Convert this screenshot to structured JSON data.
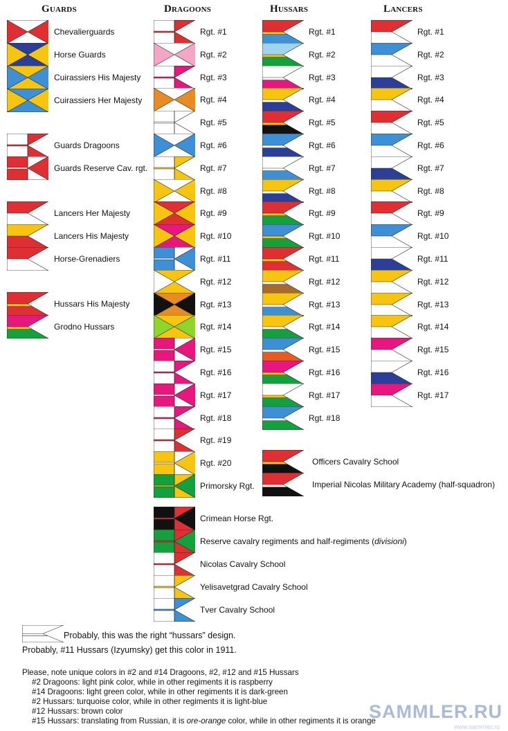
{
  "headers": [
    "Guards",
    "Dragoons",
    "Hussars",
    "Lancers"
  ],
  "colors": {
    "red": "#e02f33",
    "blue": "#3d8fd6",
    "yellow": "#f7c40f",
    "navy": "#2b3f99",
    "pink": "#e8177f",
    "green": "#14a03c",
    "black": "#111111",
    "orange": "#e88b23",
    "lightpink": "#f4a6c6",
    "lightgreen": "#8ed62b",
    "turquoise": "#9fd4ee",
    "brown": "#a86a28",
    "redorange": "#ea5a1f",
    "white": "#ffffff"
  },
  "guards": [
    {
      "label": "Chevalierguards",
      "design": "hourglass",
      "c": [
        "white",
        "red"
      ]
    },
    {
      "label": "Horse Guards",
      "design": "hourglass",
      "c": [
        "navy",
        "yellow"
      ]
    },
    {
      "label": "Cuirassiers His Majesty",
      "design": "hourglass",
      "c": [
        "yellow",
        "blue"
      ]
    },
    {
      "label": "Cuirassiers Her Majesty",
      "design": "hourglass",
      "c": [
        "blue",
        "yellow"
      ]
    },
    {
      "label": "Guards Dragoons",
      "design": "dragoon",
      "c": [
        "white",
        "red"
      ]
    },
    {
      "label": "Guards Reserve Cav. rgt.",
      "design": "dragoon",
      "c": [
        "red",
        "white"
      ]
    },
    {
      "label": "Lancers Her Majesty",
      "design": "lancer",
      "c": [
        "red",
        "white"
      ]
    },
    {
      "label": "Lancers His Majesty",
      "design": "lancer",
      "c": [
        "yellow",
        "red"
      ]
    },
    {
      "label": "Horse-Grenadiers",
      "design": "lancer",
      "c": [
        "red",
        "white"
      ]
    },
    {
      "label": "Hussars His Majesty",
      "design": "hussar",
      "c": [
        "red",
        "yellow",
        "red"
      ]
    },
    {
      "label": "Grodno Hussars",
      "design": "hussar",
      "c": [
        "pink",
        "yellow",
        "green"
      ]
    }
  ],
  "dragoons": [
    {
      "label": "Rgt. #1",
      "design": "dragoon",
      "c": [
        "white",
        "red"
      ]
    },
    {
      "label": "Rgt. #2",
      "design": "hourglass",
      "c": [
        "white",
        "lightpink"
      ]
    },
    {
      "label": "Rgt. #3",
      "design": "dragoon",
      "c": [
        "white",
        "pink"
      ]
    },
    {
      "label": "Rgt. #4",
      "design": "hourglass",
      "c": [
        "white",
        "orange"
      ]
    },
    {
      "label": "Rgt. #5",
      "design": "dragoon",
      "c": [
        "white",
        "white"
      ]
    },
    {
      "label": "Rgt. #6",
      "design": "hourglass",
      "c": [
        "white",
        "blue"
      ]
    },
    {
      "label": "Rgt. #7",
      "design": "dragoon",
      "c": [
        "white",
        "yellow"
      ]
    },
    {
      "label": "Rgt. #8",
      "design": "hourglass",
      "c": [
        "white",
        "yellow"
      ]
    },
    {
      "label": "Rgt. #9",
      "design": "hourglass",
      "c": [
        "red",
        "yellow"
      ]
    },
    {
      "label": "Rgt. #10",
      "design": "hourglass",
      "c": [
        "pink",
        "yellow"
      ]
    },
    {
      "label": "Rgt. #11",
      "design": "dragoon",
      "c": [
        "blue",
        "white"
      ]
    },
    {
      "label": "Rgt. #12",
      "design": "hourglass",
      "c": [
        "yellow",
        "white"
      ]
    },
    {
      "label": "Rgt. #13",
      "design": "hourglass",
      "c": [
        "orange",
        "black"
      ]
    },
    {
      "label": "Rgt. #14",
      "design": "hourglass",
      "c": [
        "yellow",
        "lightgreen"
      ]
    },
    {
      "label": "Rgt. #15",
      "design": "dragoon",
      "c": [
        "pink",
        "white"
      ]
    },
    {
      "label": "Rgt. #16",
      "design": "dragoon",
      "c": [
        "white",
        "pink"
      ]
    },
    {
      "label": "Rgt. #17",
      "design": "dragoon",
      "c": [
        "pink",
        "white"
      ]
    },
    {
      "label": "Rgt. #18",
      "design": "dragoon",
      "c": [
        "white",
        "pink"
      ]
    },
    {
      "label": "Rgt. #19",
      "design": "dragoon",
      "c": [
        "white",
        "red"
      ]
    },
    {
      "label": "Rgt. #20",
      "design": "dragoon",
      "c": [
        "yellow",
        "white"
      ]
    },
    {
      "label": "Primorsky Rgt.",
      "design": "dragoon",
      "c": [
        "green",
        "yellow"
      ]
    },
    {
      "label": "Crimean Horse Rgt.",
      "design": "dragoon",
      "c": [
        "black",
        "red"
      ]
    },
    {
      "label": "Reserve cavalry regiments and half-regiments (divisioni)",
      "design": "dragoon",
      "c": [
        "green",
        "red"
      ],
      "italic": "divisioni"
    },
    {
      "label": "Nicolas Cavalry School",
      "design": "dragoon",
      "c": [
        "white",
        "red"
      ]
    },
    {
      "label": "Yelisavetgrad Cavalry School",
      "design": "dragoon",
      "c": [
        "white",
        "yellow"
      ]
    },
    {
      "label": "Tver Cavalry School",
      "design": "dragoon",
      "c": [
        "white",
        "blue"
      ]
    }
  ],
  "hussars": [
    {
      "label": "Rgt. #1",
      "design": "hussar",
      "c": [
        "red",
        "yellow",
        "blue"
      ]
    },
    {
      "label": "Rgt. #2",
      "design": "hussar",
      "c": [
        "turquoise",
        "yellow",
        "green"
      ]
    },
    {
      "label": "Rgt. #3",
      "design": "hussar",
      "c": [
        "white",
        "white",
        "pink"
      ]
    },
    {
      "label": "Rgt. #4",
      "design": "hussar",
      "c": [
        "yellow",
        "white",
        "navy"
      ]
    },
    {
      "label": "Rgt. #5",
      "design": "hussar",
      "c": [
        "red",
        "yellow",
        "black"
      ]
    },
    {
      "label": "Rgt. #6",
      "design": "hussar",
      "c": [
        "blue",
        "white",
        "navy"
      ]
    },
    {
      "label": "Rgt. #7",
      "design": "hussar",
      "c": [
        "white",
        "white",
        "blue"
      ]
    },
    {
      "label": "Rgt. #8",
      "design": "hussar",
      "c": [
        "yellow",
        "white",
        "navy"
      ]
    },
    {
      "label": "Rgt. #9",
      "design": "hussar",
      "c": [
        "red",
        "yellow",
        "green"
      ]
    },
    {
      "label": "Rgt. #10",
      "design": "hussar",
      "c": [
        "blue",
        "yellow",
        "green"
      ]
    },
    {
      "label": "Rgt. #11",
      "design": "hussar",
      "c": [
        "red",
        "yellow",
        "red"
      ]
    },
    {
      "label": "Rgt. #12",
      "design": "hussar",
      "c": [
        "yellow",
        "white",
        "brown"
      ]
    },
    {
      "label": "Rgt. #13",
      "design": "hussar",
      "c": [
        "yellow",
        "white",
        "blue"
      ]
    },
    {
      "label": "Rgt. #14",
      "design": "hussar",
      "c": [
        "yellow",
        "white",
        "green"
      ]
    },
    {
      "label": "Rgt. #15",
      "design": "hussar",
      "c": [
        "blue",
        "white",
        "redorange"
      ]
    },
    {
      "label": "Rgt. #16",
      "design": "hussar",
      "c": [
        "pink",
        "yellow",
        "green"
      ]
    },
    {
      "label": "Rgt. #17",
      "design": "hussar",
      "c": [
        "white",
        "yellow",
        "green"
      ]
    },
    {
      "label": "Rgt. #18",
      "design": "hussar",
      "c": [
        "blue",
        "white",
        "green"
      ]
    },
    {
      "label": "Officers Cavalry School",
      "design": "hussar",
      "c": [
        "red",
        "yellow",
        "black"
      ]
    },
    {
      "label": "Imperial Nicolas Military Academy (half-squadron)",
      "design": "hussar",
      "c": [
        "red",
        "white",
        "black"
      ]
    }
  ],
  "lancers": [
    {
      "label": "Rgt. #1",
      "design": "lancer",
      "c": [
        "red",
        "white"
      ]
    },
    {
      "label": "Rgt. #2",
      "design": "lancer",
      "c": [
        "blue",
        "white"
      ]
    },
    {
      "label": "Rgt. #3",
      "design": "lancer",
      "c": [
        "white",
        "navy"
      ]
    },
    {
      "label": "Rgt. #4",
      "design": "lancer",
      "c": [
        "yellow",
        "white"
      ]
    },
    {
      "label": "Rgt. #5",
      "design": "lancer",
      "c": [
        "red",
        "white"
      ]
    },
    {
      "label": "Rgt. #6",
      "design": "lancer",
      "c": [
        "blue",
        "white"
      ]
    },
    {
      "label": "Rgt. #7",
      "design": "lancer",
      "c": [
        "white",
        "navy"
      ]
    },
    {
      "label": "Rgt. #8",
      "design": "lancer",
      "c": [
        "yellow",
        "white"
      ]
    },
    {
      "label": "Rgt. #9",
      "design": "lancer",
      "c": [
        "red",
        "white"
      ]
    },
    {
      "label": "Rgt. #10",
      "design": "lancer",
      "c": [
        "blue",
        "white"
      ]
    },
    {
      "label": "Rgt. #11",
      "design": "lancer",
      "c": [
        "white",
        "navy"
      ]
    },
    {
      "label": "Rgt. #12",
      "design": "lancer",
      "c": [
        "yellow",
        "white"
      ]
    },
    {
      "label": "Rgt. #13",
      "design": "lancer",
      "c": [
        "yellow",
        "white"
      ]
    },
    {
      "label": "Rgt. #14",
      "design": "lancer",
      "c": [
        "yellow",
        "white"
      ]
    },
    {
      "label": "Rgt. #15",
      "design": "lancer",
      "c": [
        "pink",
        "white"
      ]
    },
    {
      "label": "Rgt. #16",
      "design": "lancer",
      "c": [
        "white",
        "navy"
      ]
    },
    {
      "label": "Rgt. #17",
      "design": "lancer",
      "c": [
        "pink",
        "white"
      ]
    }
  ],
  "legend": {
    "sample_label": "Probably, this was the right “hussars” design."
  },
  "notes": [
    "Probably, #11 Hussars (Izyumsky) get this color in 1911.",
    "Please, note unique colors in #2 and #14 Dragoons, #2, #12 and #15 Hussars",
    "#2 Dragoons: light pink color, while in other regiments it is raspberry",
    "#14 Dragoons: light green color, while in other regiments it is dark-green",
    "#2 Hussars: turquoise color, while in other regiments it is light-blue",
    "#12 Hussars: brown color",
    "#15 Hussars: translating from Russian, it is ore-orange color, while in other regiments it is orange"
  ],
  "watermark": {
    "main": "SAMMLER.RU",
    "sub": "www.sammler.ru"
  }
}
